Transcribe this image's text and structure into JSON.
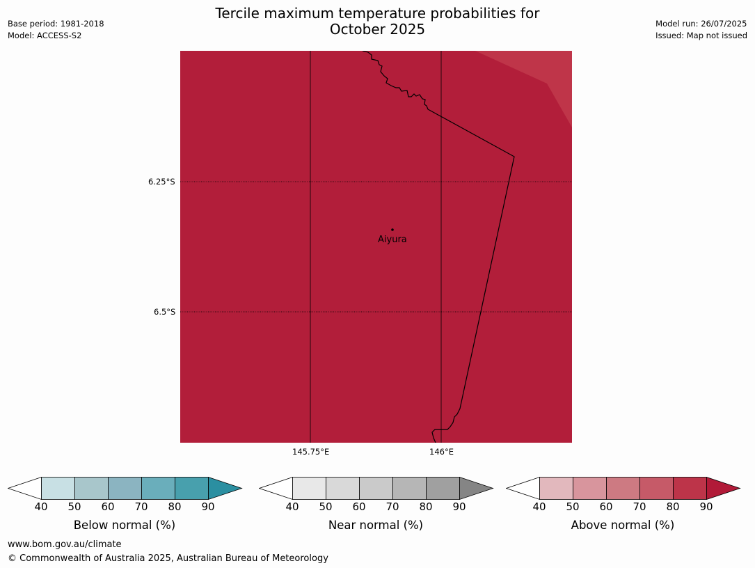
{
  "title_line1": "Tercile maximum temperature probabilities for",
  "title_line2": "October 2025",
  "meta_left": {
    "base_period": "Base period: 1981-2018",
    "model": "Model: ACCESS-S2"
  },
  "meta_right": {
    "model_run": "Model run: 26/07/2025",
    "issued": "Issued: Map not issued"
  },
  "map": {
    "lat_labels": [
      "6.25°S",
      "6.5°S"
    ],
    "lon_labels": [
      "145.75°E",
      "146°E"
    ],
    "place": "Aiyura",
    "colors": {
      "main": "#b21e3a",
      "lighter": "#bf3549"
    }
  },
  "colorbars": [
    {
      "label": "Below normal (%)",
      "ticks": [
        "40",
        "50",
        "60",
        "70",
        "80",
        "90"
      ],
      "colors": [
        "#ffffff",
        "#c8e0e4",
        "#a8c6cb",
        "#8bb4c1",
        "#6aaebb",
        "#48a0ad",
        "#2b8fa1"
      ]
    },
    {
      "label": "Near normal (%)",
      "ticks": [
        "40",
        "50",
        "60",
        "70",
        "80",
        "90"
      ],
      "colors": [
        "#ffffff",
        "#e8e8e8",
        "#d9d9d9",
        "#cacaca",
        "#b6b6b6",
        "#a0a0a0",
        "#858585"
      ]
    },
    {
      "label": "Above normal (%)",
      "ticks": [
        "40",
        "50",
        "60",
        "70",
        "80",
        "90"
      ],
      "colors": [
        "#ffffff",
        "#e2b8bd",
        "#d8959d",
        "#cd7a82",
        "#c65a68",
        "#bd3449",
        "#b11a38"
      ]
    }
  ],
  "footer": {
    "url": "www.bom.gov.au/climate",
    "copyright": "© Commonwealth of Australia 2025, Australian Bureau of Meteorology"
  }
}
